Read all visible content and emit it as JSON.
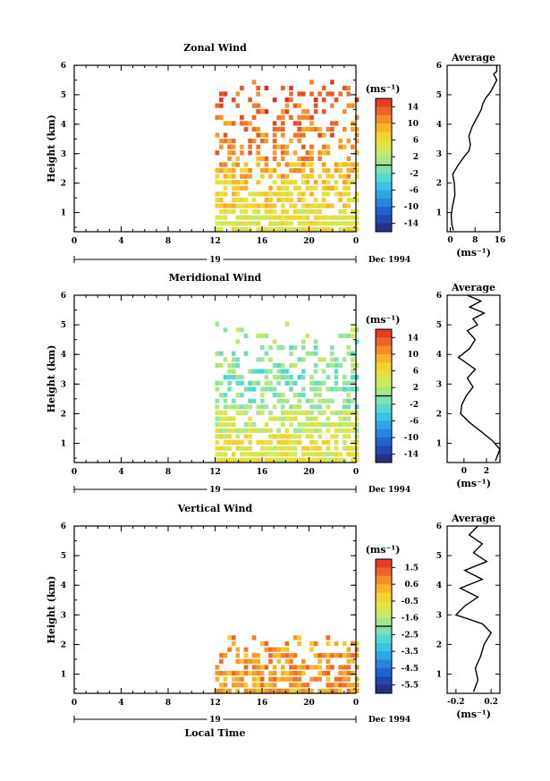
{
  "chart_data": [
    {
      "type": "heatmap",
      "title": "Zonal Wind",
      "ylabel": "Height (km)",
      "x_ticks": [
        "0",
        "4",
        "8",
        "12",
        "16",
        "20",
        "0"
      ],
      "y_ticks": [
        "1",
        "2",
        "3",
        "4",
        "5",
        "6"
      ],
      "xlim": [
        0,
        24
      ],
      "ylim": [
        0.35,
        6
      ],
      "date_marker": "19",
      "date_label": "Dec 1994",
      "colorbar": {
        "unit": "(ms⁻¹)",
        "ticks": [
          "14",
          "10",
          "6",
          "2",
          "-2",
          "-6",
          "-10",
          "-14"
        ],
        "range": [
          -16,
          16
        ]
      },
      "data_coverage": {
        "x_start": 12,
        "x_end": 24,
        "y_start": 0.35,
        "y_end": 5.5
      },
      "height_bands": [
        {
          "y": [
            0.35,
            1.0
          ],
          "value": 5
        },
        {
          "y": [
            1.0,
            2.0
          ],
          "value": 7
        },
        {
          "y": [
            2.0,
            2.6
          ],
          "value": 9
        },
        {
          "y": [
            2.6,
            3.4
          ],
          "value": 11
        },
        {
          "y": [
            3.4,
            4.0
          ],
          "value": 12
        },
        {
          "y": [
            4.0,
            5.5
          ],
          "value": 13
        }
      ],
      "profile": {
        "title": "Average",
        "xlabel": "(ms⁻¹)",
        "x_ticks": [
          "0",
          "8",
          "16"
        ],
        "xlim": [
          -1,
          16
        ],
        "points": [
          [
            1,
            0.4
          ],
          [
            0.5,
            0.6
          ],
          [
            0.3,
            0.9
          ],
          [
            0.7,
            1.2
          ],
          [
            1.5,
            1.6
          ],
          [
            1.3,
            2.0
          ],
          [
            0.8,
            2.3
          ],
          [
            2.5,
            2.6
          ],
          [
            4.5,
            2.9
          ],
          [
            6,
            3.1
          ],
          [
            6.5,
            3.3
          ],
          [
            6,
            3.6
          ],
          [
            7,
            3.9
          ],
          [
            8,
            4.1
          ],
          [
            9,
            4.3
          ],
          [
            10,
            4.5
          ],
          [
            10.5,
            4.7
          ],
          [
            11.5,
            4.9
          ],
          [
            13,
            5.1
          ],
          [
            14,
            5.3
          ],
          [
            15,
            5.5
          ],
          [
            14,
            5.7
          ],
          [
            15,
            5.8
          ],
          [
            15,
            6.0
          ]
        ]
      }
    },
    {
      "type": "heatmap",
      "title": "Meridional Wind",
      "ylabel": "Height (km)",
      "x_ticks": [
        "0",
        "4",
        "8",
        "12",
        "16",
        "20",
        "0"
      ],
      "y_ticks": [
        "1",
        "2",
        "3",
        "4",
        "5",
        "6"
      ],
      "xlim": [
        0,
        24
      ],
      "ylim": [
        0.35,
        6
      ],
      "date_marker": "19",
      "date_label": "Dec 1994",
      "colorbar": {
        "unit": "(ms⁻¹)",
        "ticks": [
          "14",
          "10",
          "6",
          "2",
          "-2",
          "-6",
          "-10",
          "-14"
        ],
        "range": [
          -16,
          16
        ]
      },
      "data_coverage": {
        "x_start": 12,
        "x_end": 24,
        "y_start": 0.35,
        "y_end": 5.0
      },
      "height_bands": [
        {
          "y": [
            0.35,
            1.2
          ],
          "value": 5
        },
        {
          "y": [
            1.2,
            2.0
          ],
          "value": 3
        },
        {
          "y": [
            2.0,
            2.7
          ],
          "value": 0
        },
        {
          "y": [
            2.7,
            3.5
          ],
          "value": -1
        },
        {
          "y": [
            3.5,
            4.5
          ],
          "value": 0
        },
        {
          "y": [
            4.5,
            5.0
          ],
          "value": 1
        }
      ],
      "profile": {
        "title": "Average",
        "xlabel": "(ms⁻¹)",
        "x_ticks": [
          "0",
          "2"
        ],
        "xlim": [
          -1.5,
          3.2
        ],
        "points": [
          [
            2.8,
            0.4
          ],
          [
            3.2,
            0.8
          ],
          [
            2.5,
            1.1
          ],
          [
            1.5,
            1.4
          ],
          [
            0.5,
            1.7
          ],
          [
            -0.3,
            2.0
          ],
          [
            -0.2,
            2.3
          ],
          [
            0.2,
            2.6
          ],
          [
            0.8,
            2.9
          ],
          [
            0.3,
            3.2
          ],
          [
            1.0,
            3.5
          ],
          [
            -0.5,
            3.9
          ],
          [
            0.5,
            4.2
          ],
          [
            1.0,
            4.5
          ],
          [
            0.3,
            4.8
          ],
          [
            1.2,
            5.0
          ],
          [
            0.8,
            5.2
          ],
          [
            1.8,
            5.4
          ],
          [
            0.5,
            5.6
          ],
          [
            1.5,
            5.8
          ],
          [
            0.3,
            6.0
          ]
        ]
      }
    },
    {
      "type": "heatmap",
      "title": "Vertical Wind",
      "ylabel": "Height (km)",
      "xlabel": "Local Time",
      "x_ticks": [
        "0",
        "4",
        "8",
        "12",
        "16",
        "20",
        "0"
      ],
      "y_ticks": [
        "1",
        "2",
        "3",
        "4",
        "5",
        "6"
      ],
      "xlim": [
        0,
        24
      ],
      "ylim": [
        0.35,
        6
      ],
      "date_marker": "19",
      "date_label": "Dec 1994",
      "colorbar": {
        "unit": "(ms⁻¹)",
        "ticks": [
          "1.5",
          "0.6",
          "-0.5",
          "-1.6",
          "-2.5",
          "-3.5",
          "-4.5",
          "-5.5"
        ],
        "range": [
          -6,
          2
        ]
      },
      "data_coverage": {
        "x_start": 12,
        "x_end": 24,
        "y_start": 0.35,
        "y_end": 2.3
      },
      "height_bands": [
        {
          "y": [
            0.35,
            2.3
          ],
          "value": 0.6
        }
      ],
      "profile": {
        "title": "Average",
        "xlabel": "(ms⁻¹)",
        "x_ticks": [
          "-0.2",
          "0.2"
        ],
        "xlim": [
          -0.3,
          0.3
        ],
        "points": [
          [
            0.0,
            0.4
          ],
          [
            0.05,
            0.8
          ],
          [
            0.02,
            1.2
          ],
          [
            0.08,
            1.6
          ],
          [
            0.12,
            2.0
          ],
          [
            0.2,
            2.4
          ],
          [
            0.1,
            2.7
          ],
          [
            -0.2,
            3.0
          ],
          [
            -0.1,
            3.3
          ],
          [
            0.05,
            3.6
          ],
          [
            -0.15,
            3.9
          ],
          [
            0.1,
            4.2
          ],
          [
            -0.1,
            4.5
          ],
          [
            0.15,
            4.8
          ],
          [
            0.0,
            5.1
          ],
          [
            0.1,
            5.4
          ],
          [
            -0.05,
            5.7
          ],
          [
            0.05,
            6.0
          ]
        ]
      }
    }
  ]
}
